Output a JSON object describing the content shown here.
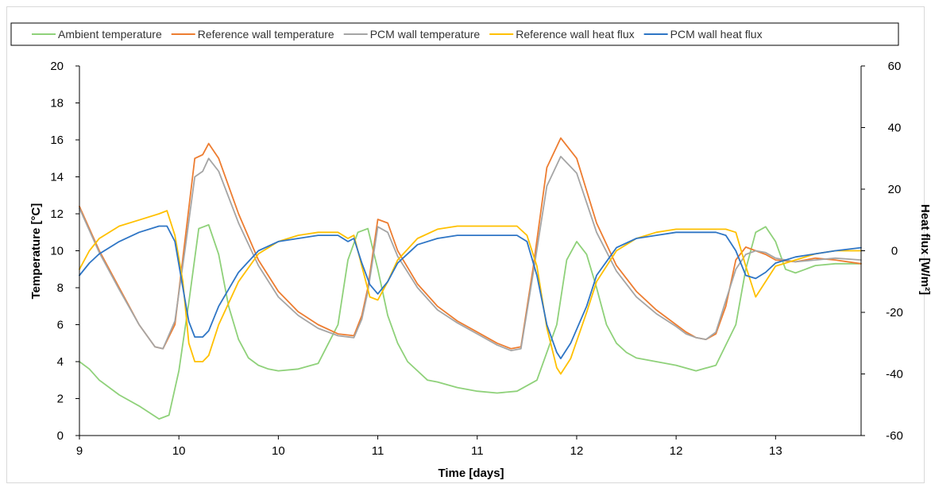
{
  "chart_data": {
    "type": "line",
    "xlabel": "Time [days]",
    "ylabel": "Temperature [°C]",
    "y2label": "Heat flux [W/m²]",
    "x_ticks": [
      {
        "pos": 9.0,
        "label": "9"
      },
      {
        "pos": 9.5,
        "label": "10"
      },
      {
        "pos": 10.0,
        "label": "10"
      },
      {
        "pos": 10.5,
        "label": "11"
      },
      {
        "pos": 11.0,
        "label": "11"
      },
      {
        "pos": 11.5,
        "label": "12"
      },
      {
        "pos": 12.0,
        "label": "12"
      },
      {
        "pos": 12.5,
        "label": "13"
      }
    ],
    "xlim": [
      9.0,
      12.93
    ],
    "ylim": [
      0,
      20
    ],
    "yticks": [
      0,
      2,
      4,
      6,
      8,
      10,
      12,
      14,
      16,
      18,
      20
    ],
    "y2lim": [
      -60,
      60
    ],
    "y2ticks": [
      -60,
      -40,
      -20,
      0,
      20,
      40,
      60
    ],
    "legend_position": "top",
    "grid": false,
    "series": [
      {
        "name": "Ambient temperature",
        "axis": "left",
        "color": "#8fd17a",
        "x": [
          9.0,
          9.05,
          9.1,
          9.2,
          9.3,
          9.4,
          9.45,
          9.5,
          9.55,
          9.6,
          9.65,
          9.7,
          9.75,
          9.8,
          9.85,
          9.9,
          9.95,
          10.0,
          10.1,
          10.2,
          10.3,
          10.35,
          10.4,
          10.45,
          10.5,
          10.55,
          10.6,
          10.65,
          10.7,
          10.75,
          10.8,
          10.9,
          11.0,
          11.1,
          11.2,
          11.3,
          11.4,
          11.45,
          11.5,
          11.55,
          11.6,
          11.65,
          11.7,
          11.75,
          11.8,
          11.9,
          12.0,
          12.1,
          12.2,
          12.3,
          12.35,
          12.4,
          12.45,
          12.5,
          12.55,
          12.6,
          12.65,
          12.7,
          12.8,
          12.93
        ],
        "y": [
          4.0,
          3.6,
          3.0,
          2.2,
          1.6,
          0.9,
          1.1,
          3.5,
          7.2,
          11.2,
          11.4,
          9.8,
          7.0,
          5.2,
          4.2,
          3.8,
          3.6,
          3.5,
          3.6,
          3.9,
          6.0,
          9.5,
          11.0,
          11.2,
          9.0,
          6.5,
          5.0,
          4.0,
          3.5,
          3.0,
          2.9,
          2.6,
          2.4,
          2.3,
          2.4,
          3.0,
          6.0,
          9.5,
          10.5,
          9.8,
          8.0,
          6.0,
          5.0,
          4.5,
          4.2,
          4.0,
          3.8,
          3.5,
          3.8,
          6.0,
          9.0,
          11.0,
          11.3,
          10.5,
          9.0,
          8.8,
          9.0,
          9.2,
          9.3,
          9.3
        ]
      },
      {
        "name": "Reference wall temperature",
        "axis": "left",
        "color": "#ed7d31",
        "x": [
          9.0,
          9.1,
          9.2,
          9.3,
          9.38,
          9.42,
          9.48,
          9.53,
          9.58,
          9.62,
          9.65,
          9.7,
          9.8,
          9.9,
          10.0,
          10.1,
          10.2,
          10.3,
          10.38,
          10.42,
          10.45,
          10.5,
          10.55,
          10.6,
          10.7,
          10.8,
          10.9,
          11.0,
          11.1,
          11.17,
          11.22,
          11.28,
          11.35,
          11.42,
          11.5,
          11.6,
          11.7,
          11.8,
          11.9,
          12.0,
          12.05,
          12.1,
          12.15,
          12.2,
          12.25,
          12.3,
          12.35,
          12.4,
          12.45,
          12.5,
          12.6,
          12.7,
          12.8,
          12.93
        ],
        "y": [
          12.4,
          10.0,
          8.0,
          6.0,
          4.8,
          4.7,
          6.0,
          10.5,
          15.0,
          15.2,
          15.8,
          15.0,
          12.0,
          9.5,
          7.8,
          6.7,
          6.0,
          5.5,
          5.4,
          6.5,
          8.0,
          11.7,
          11.5,
          10.0,
          8.2,
          7.0,
          6.2,
          5.6,
          5.0,
          4.7,
          4.8,
          9.0,
          14.5,
          16.1,
          15.0,
          11.5,
          9.2,
          7.8,
          6.8,
          6.0,
          5.6,
          5.3,
          5.2,
          5.5,
          7.0,
          9.5,
          10.2,
          10.0,
          9.8,
          9.5,
          9.4,
          9.6,
          9.5,
          9.3
        ]
      },
      {
        "name": "PCM wall temperature",
        "axis": "left",
        "color": "#a5a5a5",
        "x": [
          9.0,
          9.1,
          9.2,
          9.3,
          9.38,
          9.42,
          9.48,
          9.53,
          9.58,
          9.62,
          9.65,
          9.7,
          9.8,
          9.9,
          10.0,
          10.1,
          10.2,
          10.3,
          10.38,
          10.42,
          10.45,
          10.5,
          10.55,
          10.6,
          10.7,
          10.8,
          10.9,
          11.0,
          11.1,
          11.17,
          11.22,
          11.28,
          11.35,
          11.42,
          11.5,
          11.6,
          11.7,
          11.8,
          11.9,
          12.0,
          12.05,
          12.1,
          12.15,
          12.2,
          12.25,
          12.3,
          12.35,
          12.4,
          12.45,
          12.5,
          12.6,
          12.7,
          12.8,
          12.93
        ],
        "y": [
          12.3,
          9.9,
          7.9,
          6.0,
          4.8,
          4.7,
          6.2,
          10.0,
          14.0,
          14.3,
          15.0,
          14.3,
          11.5,
          9.2,
          7.5,
          6.5,
          5.8,
          5.4,
          5.3,
          6.3,
          7.8,
          11.3,
          11.0,
          9.7,
          8.0,
          6.8,
          6.1,
          5.5,
          4.9,
          4.6,
          4.7,
          8.7,
          13.5,
          15.1,
          14.2,
          11.0,
          8.9,
          7.5,
          6.6,
          5.9,
          5.5,
          5.3,
          5.2,
          5.6,
          7.3,
          9.0,
          9.8,
          10.0,
          9.9,
          9.6,
          9.4,
          9.5,
          9.6,
          9.5
        ]
      },
      {
        "name": "Reference wall heat flux",
        "axis": "right",
        "color": "#ffc000",
        "x": [
          9.0,
          9.05,
          9.1,
          9.2,
          9.3,
          9.4,
          9.44,
          9.48,
          9.52,
          9.55,
          9.58,
          9.62,
          9.65,
          9.7,
          9.8,
          9.9,
          10.0,
          10.1,
          10.2,
          10.3,
          10.35,
          10.38,
          10.42,
          10.46,
          10.5,
          10.55,
          10.6,
          10.7,
          10.8,
          10.9,
          11.0,
          11.1,
          11.2,
          11.25,
          11.3,
          11.35,
          11.4,
          11.42,
          11.47,
          11.55,
          11.6,
          11.7,
          11.8,
          11.9,
          12.0,
          12.1,
          12.2,
          12.25,
          12.3,
          12.35,
          12.4,
          12.45,
          12.5,
          12.6,
          12.7,
          12.8,
          12.93
        ],
        "y": [
          -6,
          0,
          4,
          8,
          10,
          12,
          13,
          5,
          -10,
          -30,
          -36,
          -36,
          -34,
          -24,
          -10,
          -1,
          3,
          5,
          6,
          6,
          4,
          5,
          -5,
          -15,
          -16,
          -10,
          -3,
          4,
          7,
          8,
          8,
          8,
          8,
          5,
          -5,
          -25,
          -38,
          -40,
          -35,
          -20,
          -10,
          0,
          4,
          6,
          7,
          7,
          7,
          7,
          6,
          -5,
          -15,
          -10,
          -5,
          -3,
          -1,
          0,
          0
        ]
      },
      {
        "name": "PCM wall heat flux",
        "axis": "right",
        "color": "#2e75c5",
        "x": [
          9.0,
          9.05,
          9.1,
          9.2,
          9.3,
          9.4,
          9.44,
          9.48,
          9.52,
          9.55,
          9.58,
          9.62,
          9.65,
          9.7,
          9.8,
          9.9,
          10.0,
          10.1,
          10.2,
          10.3,
          10.35,
          10.38,
          10.42,
          10.46,
          10.5,
          10.55,
          10.6,
          10.7,
          10.8,
          10.9,
          11.0,
          11.1,
          11.2,
          11.25,
          11.3,
          11.35,
          11.4,
          11.42,
          11.47,
          11.55,
          11.6,
          11.7,
          11.8,
          11.9,
          12.0,
          12.1,
          12.2,
          12.25,
          12.3,
          12.35,
          12.4,
          12.45,
          12.5,
          12.6,
          12.7,
          12.8,
          12.93
        ],
        "y": [
          -8,
          -4,
          -1,
          3,
          6,
          8,
          8,
          3,
          -12,
          -23,
          -28,
          -28,
          -26,
          -18,
          -7,
          0,
          3,
          4,
          5,
          5,
          3,
          4,
          -4,
          -11,
          -14,
          -10,
          -4,
          2,
          4,
          5,
          5,
          5,
          5,
          3,
          -8,
          -24,
          -33,
          -35,
          -30,
          -18,
          -8,
          1,
          4,
          5,
          6,
          6,
          6,
          5,
          0,
          -8,
          -9,
          -7,
          -4,
          -2,
          -1,
          0,
          1
        ]
      }
    ]
  }
}
